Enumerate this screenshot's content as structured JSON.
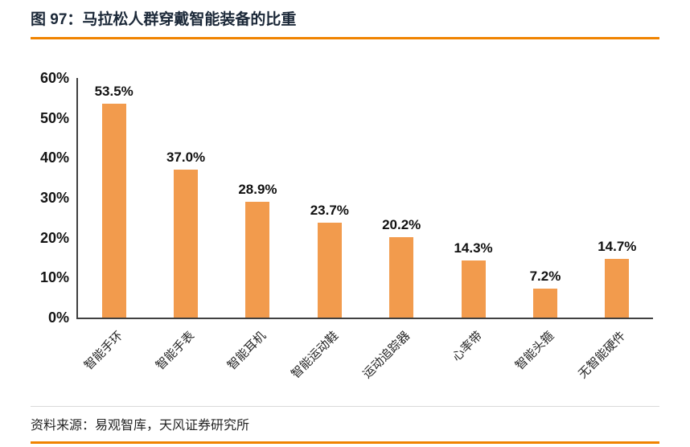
{
  "header": {
    "title": "图 97：马拉松人群穿戴智能装备的比重"
  },
  "chart_data": {
    "type": "bar",
    "title": "马拉松人群穿戴智能装备的比重",
    "categories": [
      "智能手环",
      "智能手表",
      "智能耳机",
      "智能运动鞋",
      "运动追踪器",
      "心率带",
      "智能头箍",
      "无智能硬件"
    ],
    "values": [
      53.5,
      37.0,
      28.9,
      23.7,
      20.2,
      14.3,
      7.2,
      14.7
    ],
    "value_labels": [
      "53.5%",
      "37.0%",
      "28.9%",
      "23.7%",
      "20.2%",
      "14.3%",
      "7.2%",
      "14.7%"
    ],
    "xlabel": "",
    "ylabel": "",
    "ylim": [
      0,
      60
    ],
    "yticks": [
      "0%",
      "10%",
      "20%",
      "30%",
      "40%",
      "50%",
      "60%"
    ],
    "grid": false,
    "legend": "none",
    "bar_color": "#f29b4d"
  },
  "footer": {
    "source": "资料来源：易观智库，天风证券研究所"
  },
  "colors": {
    "accent_orange": "#f08300",
    "bar_orange": "#f29b4d",
    "axis": "#404040",
    "title_text": "#1b2838"
  }
}
